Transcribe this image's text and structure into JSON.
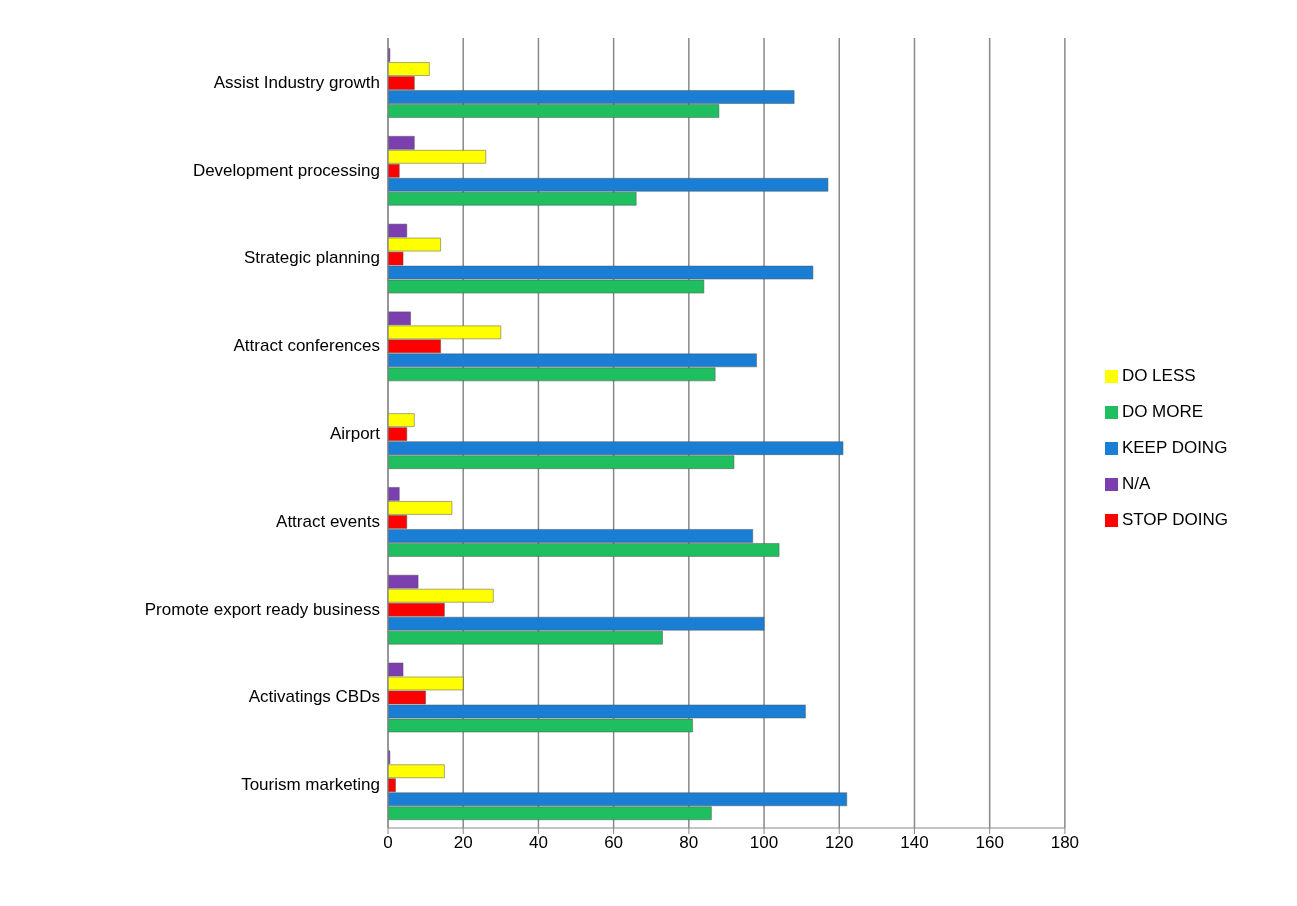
{
  "chart_data": {
    "type": "bar",
    "orientation": "horizontal",
    "categories": [
      "Assist Industry growth",
      "Development processing",
      "Strategic planning",
      "Attract conferences",
      "Airport",
      "Attract events",
      "Promote export ready business",
      "Activatings CBDs",
      "Tourism marketing"
    ],
    "series": [
      {
        "name": "N/A",
        "color": "#7b3fb0",
        "values": [
          0.5,
          7,
          5,
          6,
          0,
          3,
          8,
          4,
          0.5
        ]
      },
      {
        "name": "DO LESS",
        "color": "#ffff00",
        "values": [
          11,
          26,
          14,
          30,
          7,
          17,
          28,
          20,
          15
        ]
      },
      {
        "name": "STOP DOING",
        "color": "#ff0000",
        "values": [
          7,
          3,
          4,
          14,
          5,
          5,
          15,
          10,
          2
        ]
      },
      {
        "name": "KEEP DOING",
        "color": "#1a7fd4",
        "values": [
          108,
          117,
          113,
          98,
          121,
          97,
          100,
          111,
          122
        ]
      },
      {
        "name": "DO MORE",
        "color": "#1fbf5f",
        "values": [
          88,
          66,
          84,
          87,
          92,
          104,
          73,
          81,
          86
        ]
      }
    ],
    "xlim": [
      0,
      180
    ],
    "xticks": [
      0,
      20,
      40,
      60,
      80,
      100,
      120,
      140,
      160,
      180
    ],
    "grid": "x",
    "legend": "right"
  }
}
